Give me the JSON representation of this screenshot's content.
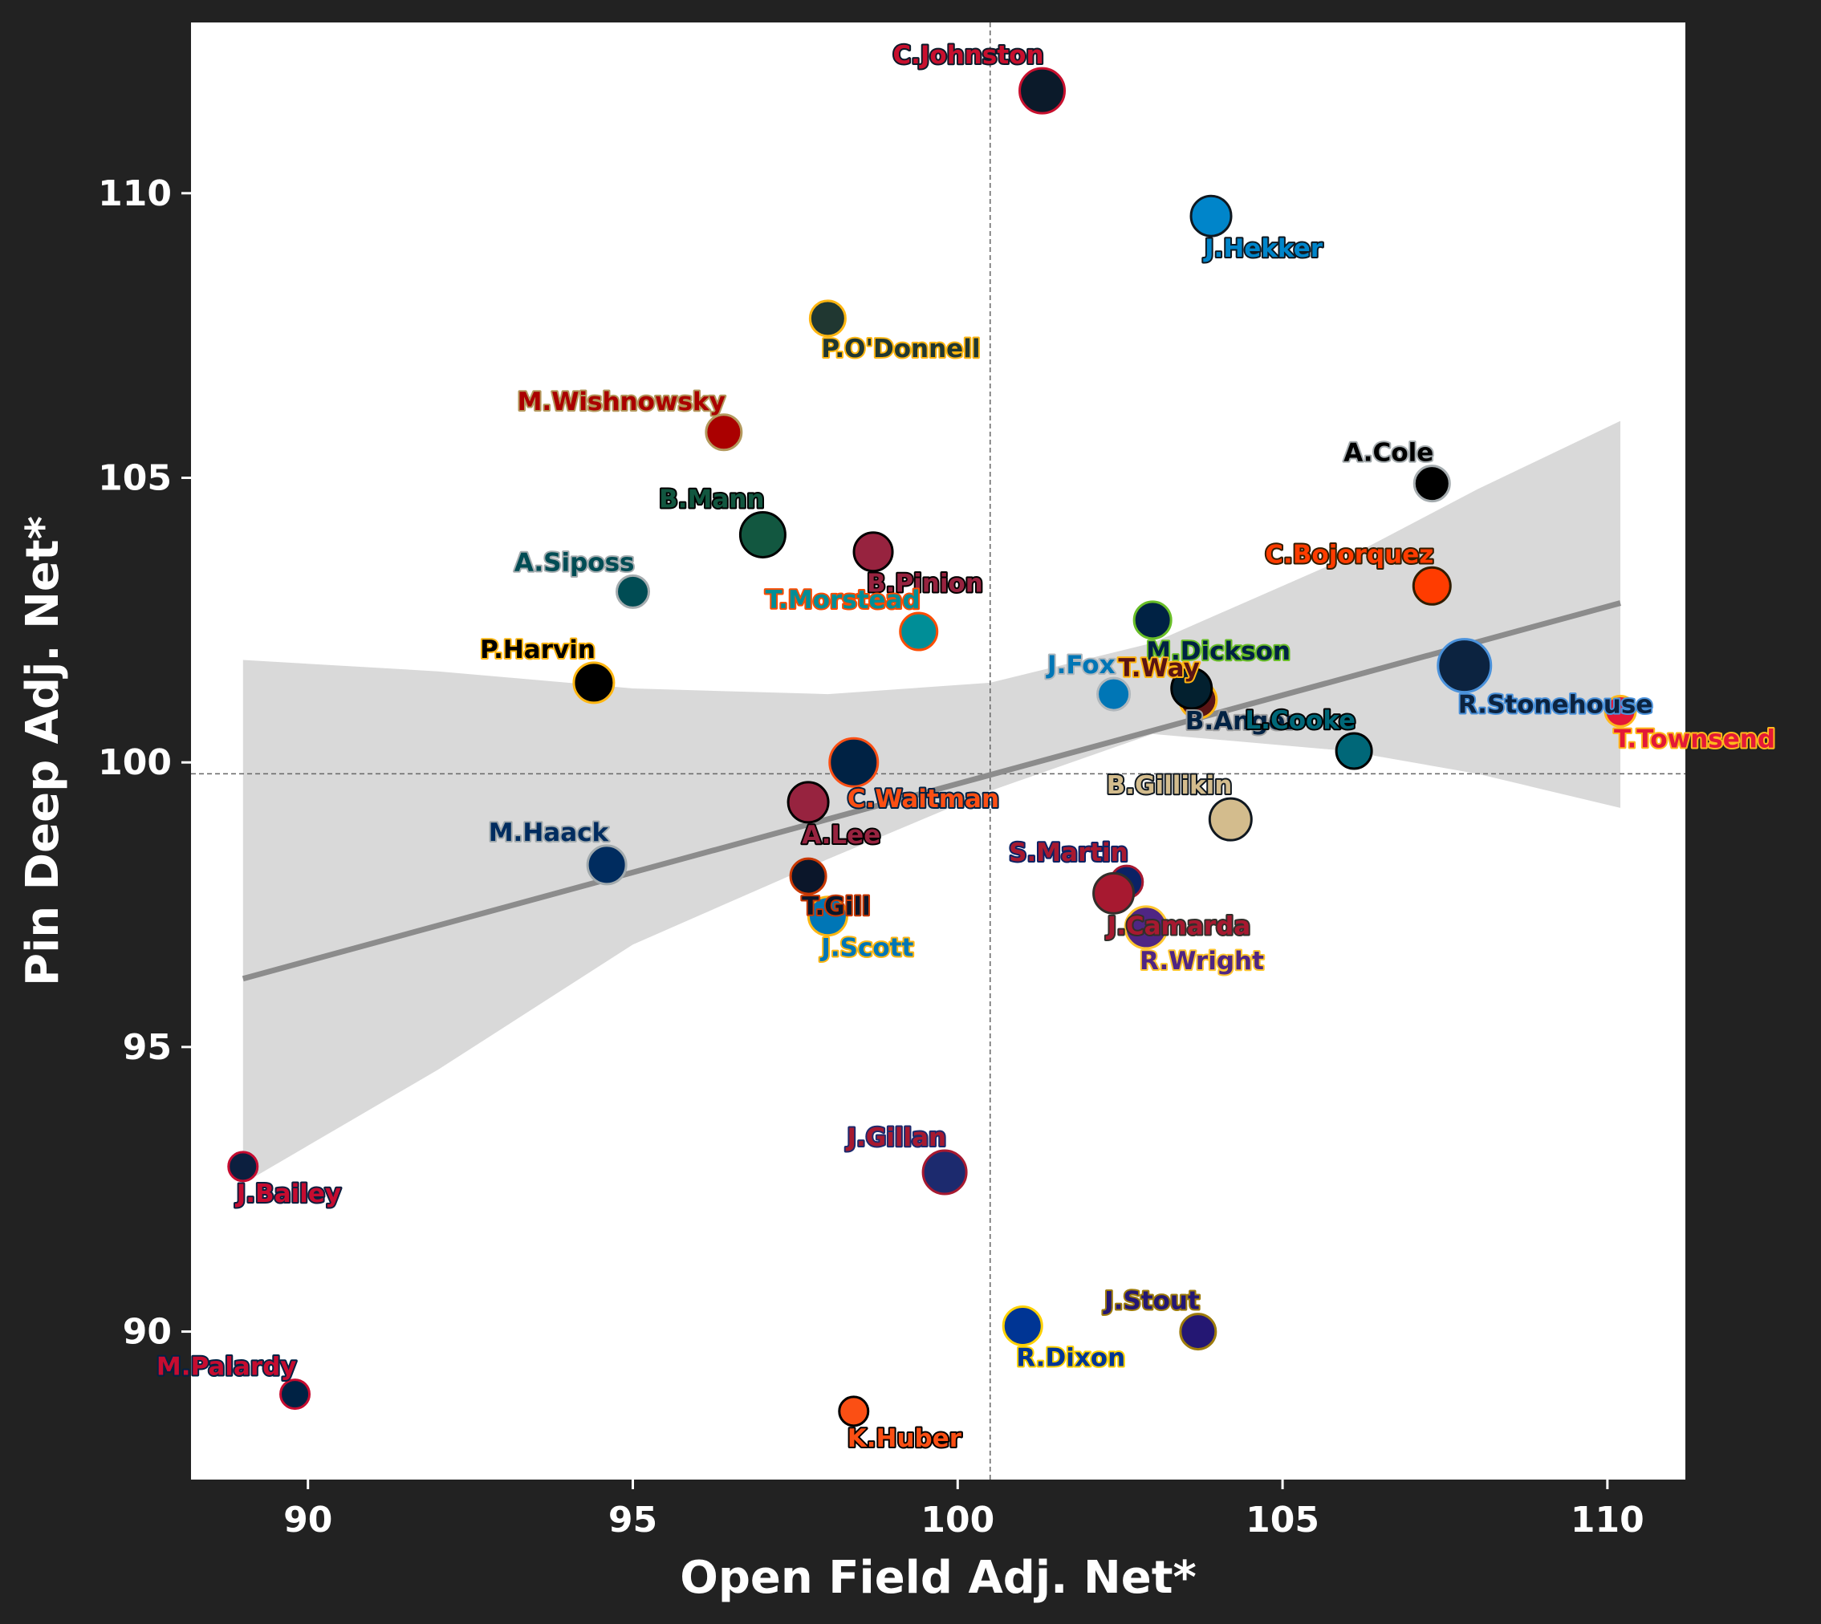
{
  "chart_data": {
    "type": "scatter",
    "xlabel": "Open Field Adj. Net*",
    "ylabel": "Pin Deep Adj. Net*",
    "xlim": [
      88.2,
      111.2
    ],
    "ylim": [
      87.4,
      113
    ],
    "xticks": [
      90,
      95,
      100,
      105,
      110
    ],
    "yticks": [
      90,
      95,
      100,
      105,
      110
    ],
    "mean_x": 100.5,
    "mean_y": 99.8,
    "trend": {
      "x0": 89.0,
      "y0": 96.2,
      "x1": 110.2,
      "y1": 102.8
    },
    "ci_band": {
      "x": [
        89.0,
        92.0,
        95.0,
        98.0,
        100.5,
        103.0,
        106.0,
        108.0,
        110.2
      ],
      "upper": [
        101.8,
        101.6,
        101.3,
        101.2,
        101.4,
        102.1,
        103.6,
        104.8,
        106.0
      ],
      "lower": [
        92.6,
        94.6,
        96.8,
        98.3,
        99.5,
        100.5,
        100.2,
        99.8,
        99.2
      ]
    },
    "points": [
      {
        "name": "C.Johnston",
        "x": 101.3,
        "y": 111.8,
        "size": 28,
        "fill": "#0b1a2a",
        "edge": "#c8102e",
        "text": "#c8102e",
        "outline": "#0b1a2a",
        "anchor": "end",
        "dx": -2,
        "dy": -0.5
      },
      {
        "name": "J.Hekker",
        "x": 103.9,
        "y": 109.6,
        "size": 25,
        "fill": "#0085ca",
        "edge": "#101820",
        "text": "#0085ca",
        "outline": "#101820",
        "anchor": "start",
        "dx": 0,
        "dy": 0.5
      },
      {
        "name": "P.O'Donnell",
        "x": 98.0,
        "y": 107.8,
        "size": 22,
        "fill": "#203731",
        "edge": "#ffb612",
        "text": "#203731",
        "outline": "#ffb612",
        "anchor": "start",
        "dx": 0,
        "dy": 0.5
      },
      {
        "name": "M.Wishnowsky",
        "x": 96.4,
        "y": 105.8,
        "size": 22,
        "fill": "#aa0000",
        "edge": "#b3995d",
        "text": "#aa0000",
        "outline": "#b3995d",
        "anchor": "end",
        "dx": 0,
        "dy": -0.5
      },
      {
        "name": "A.Cole",
        "x": 107.3,
        "y": 104.9,
        "size": 22,
        "fill": "#000000",
        "edge": "#a5acaf",
        "text": "#000000",
        "outline": "#a5acaf",
        "anchor": "end",
        "dx": 0,
        "dy": -0.5
      },
      {
        "name": "B.Mann",
        "x": 97.0,
        "y": 104.0,
        "size": 28,
        "fill": "#125740",
        "edge": "#000000",
        "text": "#125740",
        "outline": "#000000",
        "anchor": "end",
        "dx": 0,
        "dy": -0.5
      },
      {
        "name": "B.Pinion",
        "x": 98.7,
        "y": 103.7,
        "size": 24,
        "fill": "#97233f",
        "edge": "#000000",
        "text": "#97233f",
        "outline": "#000000",
        "anchor": "start",
        "dx": 0,
        "dy": 0.5
      },
      {
        "name": "C.Bojorquez",
        "x": 107.3,
        "y": 103.1,
        "size": 23,
        "fill": "#ff3c00",
        "edge": "#311d00",
        "text": "#ff3c00",
        "outline": "#311d00",
        "anchor": "end",
        "dx": 0,
        "dy": -0.5
      },
      {
        "name": "A.Siposs",
        "x": 95.0,
        "y": 103.0,
        "size": 20,
        "fill": "#004c54",
        "edge": "#a5acaf",
        "text": "#004c54",
        "outline": "#a5acaf",
        "anchor": "end",
        "dx": 0,
        "dy": -0.5
      },
      {
        "name": "T.Morstead",
        "x": 99.4,
        "y": 102.3,
        "size": 23,
        "fill": "#008e97",
        "edge": "#fc4c02",
        "text": "#008e97",
        "outline": "#fc4c02",
        "anchor": "end",
        "dx": 0,
        "dy": -0.5
      },
      {
        "name": "M.Dickson",
        "x": 103.0,
        "y": 102.5,
        "size": 23,
        "fill": "#002244",
        "edge": "#69be28",
        "text": "#002244",
        "outline": "#69be28",
        "anchor": "start",
        "dx": 0,
        "dy": 0.5
      },
      {
        "name": "R.Stonehouse",
        "x": 107.8,
        "y": 101.7,
        "size": 33,
        "fill": "#0c2340",
        "edge": "#4b92db",
        "text": "#0c2340",
        "outline": "#4b92db",
        "anchor": "start",
        "dx": 0,
        "dy": 0.5
      },
      {
        "name": "P.Harvin",
        "x": 94.4,
        "y": 101.4,
        "size": 25,
        "fill": "#000000",
        "edge": "#ffb612",
        "text": "#000000",
        "outline": "#ffb612",
        "anchor": "end",
        "dx": 0,
        "dy": -0.5
      },
      {
        "name": "J.Fox",
        "x": 102.4,
        "y": 101.2,
        "size": 20,
        "fill": "#0076b6",
        "edge": "#b0b7bc",
        "text": "#0076b6",
        "outline": "#b0b7bc",
        "anchor": "end",
        "dx": 0,
        "dy": -0.5
      },
      {
        "name": "T.Way",
        "x": 103.7,
        "y": 101.1,
        "size": 23,
        "fill": "#5a1414",
        "edge": "#ffb612",
        "text": "#5a1414",
        "outline": "#ffb612",
        "anchor": "end",
        "dx": 0,
        "dy": -0.5
      },
      {
        "name": "B.Anger",
        "x": 103.6,
        "y": 101.3,
        "size": 25,
        "fill": "#03202f",
        "edge": "#000000",
        "text": "#002244",
        "outline": "#a0a0a0",
        "anchor": "start",
        "dx": 0,
        "dy": 0.5
      },
      {
        "name": "L.Cooke",
        "x": 106.1,
        "y": 100.2,
        "size": 22,
        "fill": "#006778",
        "edge": "#000000",
        "text": "#006778",
        "outline": "#000000",
        "anchor": "end",
        "dx": 0,
        "dy": -0.5
      },
      {
        "name": "T.Townsend",
        "x": 110.2,
        "y": 100.9,
        "size": 19,
        "fill": "#e31837",
        "edge": "#ffb81c",
        "text": "#e31837",
        "outline": "#ffb81c",
        "anchor": "start",
        "dx": 0,
        "dy": 0.5
      },
      {
        "name": "C.Waitman",
        "x": 98.4,
        "y": 100.0,
        "size": 30,
        "fill": "#002244",
        "edge": "#fb4f14",
        "text": "#fb4f14",
        "outline": "#002244",
        "anchor": "start",
        "dx": 0,
        "dy": 0.5
      },
      {
        "name": "B.Gillikin",
        "x": 104.2,
        "y": 99.0,
        "size": 26,
        "fill": "#d3bc8d",
        "edge": "#101820",
        "text": "#d3bc8d",
        "outline": "#101820",
        "anchor": "end",
        "dx": 0,
        "dy": -0.5
      },
      {
        "name": "A.Lee",
        "x": 97.7,
        "y": 99.3,
        "size": 25,
        "fill": "#97233f",
        "edge": "#000000",
        "text": "#97233f",
        "outline": "#000000",
        "anchor": "start",
        "dx": 0,
        "dy": 0.5
      },
      {
        "name": "M.Haack",
        "x": 94.6,
        "y": 98.2,
        "size": 24,
        "fill": "#002c5f",
        "edge": "#a2aaad",
        "text": "#002c5f",
        "outline": "#a2aaad",
        "anchor": "end",
        "dx": 0,
        "dy": -0.5
      },
      {
        "name": "S.Martin",
        "x": 102.6,
        "y": 97.9,
        "size": 20,
        "fill": "#0b2265",
        "edge": "#a71930",
        "text": "#a71930",
        "outline": "#0b2265",
        "anchor": "end",
        "dx": 0,
        "dy": -0.5
      },
      {
        "name": "T.Gill",
        "x": 97.7,
        "y": 98.0,
        "size": 22,
        "fill": "#0b162a",
        "edge": "#c83803",
        "text": "#0b162a",
        "outline": "#c83803",
        "anchor": "start",
        "dx": 0,
        "dy": 0.5
      },
      {
        "name": "J.Camarda",
        "x": 102.4,
        "y": 97.7,
        "size": 25,
        "fill": "#a71930",
        "edge": "#322f2b",
        "text": "#a71930",
        "outline": "#322f2b",
        "anchor": "start",
        "dx": 0,
        "dy": 0.5
      },
      {
        "name": "J.Scott",
        "x": 98.0,
        "y": 97.3,
        "size": 24,
        "fill": "#0076b6",
        "edge": "#ffb612",
        "text": "#0076b6",
        "outline": "#ffb612",
        "anchor": "start",
        "dx": 0,
        "dy": 0.5
      },
      {
        "name": "R.Wright",
        "x": 102.9,
        "y": 97.1,
        "size": 26,
        "fill": "#4f2683",
        "edge": "#ffc62f",
        "text": "#4f2683",
        "outline": "#ffc62f",
        "anchor": "start",
        "dx": 0,
        "dy": 0.5
      },
      {
        "name": "J.Bailey",
        "x": 89.0,
        "y": 92.9,
        "size": 18,
        "fill": "#0c1f3f",
        "edge": "#c60c30",
        "text": "#c60c30",
        "outline": "#0c1f3f",
        "anchor": "start",
        "dx": 0,
        "dy": 0.5
      },
      {
        "name": "J.Gillan",
        "x": 99.8,
        "y": 92.8,
        "size": 27,
        "fill": "#1c2a6e",
        "edge": "#a71930",
        "text": "#a71930",
        "outline": "#1c2a6e",
        "anchor": "end",
        "dx": 0,
        "dy": -0.5
      },
      {
        "name": "J.Stout",
        "x": 103.7,
        "y": 90.0,
        "size": 22,
        "fill": "#241773",
        "edge": "#9e7c0c",
        "text": "#241773",
        "outline": "#9e7c0c",
        "anchor": "end",
        "dx": 0,
        "dy": -0.5
      },
      {
        "name": "R.Dixon",
        "x": 101.0,
        "y": 90.1,
        "size": 24,
        "fill": "#003594",
        "edge": "#ffd100",
        "text": "#003594",
        "outline": "#ffd100",
        "anchor": "start",
        "dx": 0,
        "dy": 0.5
      },
      {
        "name": "M.Palardy",
        "x": 89.8,
        "y": 88.9,
        "size": 18,
        "fill": "#002244",
        "edge": "#c60c30",
        "text": "#c60c30",
        "outline": "#002244",
        "anchor": "end",
        "dx": 0,
        "dy": -0.5
      },
      {
        "name": "K.Huber",
        "x": 98.4,
        "y": 88.6,
        "size": 18,
        "fill": "#fb4f14",
        "edge": "#000000",
        "text": "#fb4f14",
        "outline": "#000000",
        "anchor": "start",
        "dx": 0,
        "dy": 0.5
      }
    ]
  }
}
